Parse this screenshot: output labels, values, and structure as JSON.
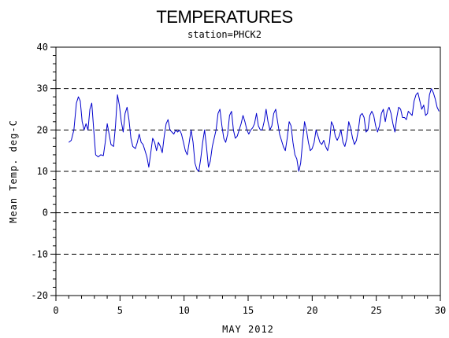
{
  "chart_data": {
    "type": "line",
    "title": "TEMPERATURES",
    "subtitle": "station=PHCK2",
    "xlabel": "MAY 2012",
    "ylabel": "Mean Temp. deg-C",
    "xlim": [
      0,
      30
    ],
    "ylim": [
      -20,
      40
    ],
    "xticks": [
      0,
      5,
      10,
      15,
      20,
      25,
      30
    ],
    "yticks": [
      -20,
      -10,
      0,
      10,
      20,
      30,
      40
    ],
    "grid": "horizontal dashed at major y ticks",
    "series": [
      {
        "color": "#0000cc",
        "points": [
          [
            1.0,
            17.0
          ],
          [
            1.2,
            17.5
          ],
          [
            1.4,
            20.0
          ],
          [
            1.6,
            26.5
          ],
          [
            1.75,
            28.0
          ],
          [
            1.9,
            27.0
          ],
          [
            2.05,
            22.0
          ],
          [
            2.2,
            20.0
          ],
          [
            2.35,
            21.5
          ],
          [
            2.5,
            20.0
          ],
          [
            2.65,
            25.0
          ],
          [
            2.8,
            26.5
          ],
          [
            2.95,
            20.0
          ],
          [
            3.1,
            14.0
          ],
          [
            3.3,
            13.5
          ],
          [
            3.5,
            14.0
          ],
          [
            3.7,
            13.8
          ],
          [
            3.85,
            17.0
          ],
          [
            4.0,
            21.5
          ],
          [
            4.15,
            19.0
          ],
          [
            4.3,
            16.5
          ],
          [
            4.5,
            16.0
          ],
          [
            4.65,
            21.0
          ],
          [
            4.8,
            28.5
          ],
          [
            4.95,
            26.0
          ],
          [
            5.1,
            22.0
          ],
          [
            5.25,
            19.5
          ],
          [
            5.4,
            24.0
          ],
          [
            5.55,
            25.5
          ],
          [
            5.7,
            22.5
          ],
          [
            5.85,
            18.0
          ],
          [
            6.0,
            16.0
          ],
          [
            6.2,
            15.5
          ],
          [
            6.35,
            17.0
          ],
          [
            6.5,
            19.0
          ],
          [
            6.65,
            17.0
          ],
          [
            6.8,
            16.5
          ],
          [
            6.95,
            15.0
          ],
          [
            7.1,
            13.5
          ],
          [
            7.25,
            11.0
          ],
          [
            7.4,
            14.5
          ],
          [
            7.55,
            18.0
          ],
          [
            7.7,
            17.0
          ],
          [
            7.85,
            15.0
          ],
          [
            8.0,
            17.0
          ],
          [
            8.15,
            16.0
          ],
          [
            8.3,
            14.5
          ],
          [
            8.45,
            18.5
          ],
          [
            8.6,
            21.5
          ],
          [
            8.75,
            22.5
          ],
          [
            8.9,
            20.0
          ],
          [
            9.05,
            19.5
          ],
          [
            9.2,
            19.0
          ],
          [
            9.35,
            20.0
          ],
          [
            9.5,
            19.5
          ],
          [
            9.65,
            20.0
          ],
          [
            9.8,
            19.0
          ],
          [
            9.95,
            17.0
          ],
          [
            10.1,
            15.0
          ],
          [
            10.25,
            14.0
          ],
          [
            10.4,
            17.0
          ],
          [
            10.55,
            20.0
          ],
          [
            10.7,
            17.0
          ],
          [
            10.85,
            12.0
          ],
          [
            11.0,
            10.5
          ],
          [
            11.15,
            10.0
          ],
          [
            11.3,
            13.0
          ],
          [
            11.45,
            17.0
          ],
          [
            11.6,
            20.0
          ],
          [
            11.75,
            16.0
          ],
          [
            11.9,
            11.0
          ],
          [
            12.05,
            12.5
          ],
          [
            12.2,
            16.0
          ],
          [
            12.35,
            18.0
          ],
          [
            12.5,
            20.0
          ],
          [
            12.65,
            24.0
          ],
          [
            12.8,
            25.0
          ],
          [
            12.95,
            21.0
          ],
          [
            13.1,
            18.0
          ],
          [
            13.25,
            17.0
          ],
          [
            13.4,
            19.0
          ],
          [
            13.55,
            23.5
          ],
          [
            13.7,
            24.5
          ],
          [
            13.85,
            20.0
          ],
          [
            14.0,
            18.0
          ],
          [
            14.15,
            18.5
          ],
          [
            14.3,
            20.0
          ],
          [
            14.45,
            21.5
          ],
          [
            14.6,
            23.5
          ],
          [
            14.75,
            22.0
          ],
          [
            14.9,
            20.0
          ],
          [
            15.05,
            19.0
          ],
          [
            15.2,
            20.0
          ],
          [
            15.35,
            20.5
          ],
          [
            15.5,
            21.5
          ],
          [
            15.65,
            24.0
          ],
          [
            15.8,
            21.0
          ],
          [
            15.95,
            20.0
          ],
          [
            16.1,
            20.0
          ],
          [
            16.25,
            22.0
          ],
          [
            16.4,
            25.0
          ],
          [
            16.55,
            22.0
          ],
          [
            16.7,
            20.0
          ],
          [
            16.85,
            21.0
          ],
          [
            17.0,
            24.0
          ],
          [
            17.15,
            25.0
          ],
          [
            17.3,
            22.0
          ],
          [
            17.45,
            19.0
          ],
          [
            17.6,
            17.5
          ],
          [
            17.75,
            16.0
          ],
          [
            17.9,
            15.0
          ],
          [
            18.05,
            18.0
          ],
          [
            18.2,
            22.0
          ],
          [
            18.35,
            21.0
          ],
          [
            18.5,
            17.0
          ],
          [
            18.65,
            14.0
          ],
          [
            18.8,
            13.0
          ],
          [
            18.95,
            10.0
          ],
          [
            19.1,
            12.0
          ],
          [
            19.25,
            17.0
          ],
          [
            19.4,
            22.0
          ],
          [
            19.55,
            20.0
          ],
          [
            19.7,
            17.0
          ],
          [
            19.85,
            15.0
          ],
          [
            20.0,
            15.5
          ],
          [
            20.15,
            17.0
          ],
          [
            20.3,
            20.0
          ],
          [
            20.45,
            18.5
          ],
          [
            20.6,
            17.0
          ],
          [
            20.75,
            16.5
          ],
          [
            20.9,
            17.5
          ],
          [
            21.05,
            16.0
          ],
          [
            21.2,
            15.0
          ],
          [
            21.35,
            17.0
          ],
          [
            21.5,
            22.0
          ],
          [
            21.65,
            21.0
          ],
          [
            21.8,
            18.5
          ],
          [
            21.95,
            17.5
          ],
          [
            22.1,
            18.5
          ],
          [
            22.25,
            20.0
          ],
          [
            22.4,
            17.0
          ],
          [
            22.55,
            16.0
          ],
          [
            22.7,
            18.0
          ],
          [
            22.85,
            22.0
          ],
          [
            23.0,
            20.5
          ],
          [
            23.15,
            18.0
          ],
          [
            23.3,
            16.5
          ],
          [
            23.45,
            17.5
          ],
          [
            23.6,
            20.0
          ],
          [
            23.75,
            23.5
          ],
          [
            23.9,
            24.0
          ],
          [
            24.05,
            23.0
          ],
          [
            24.2,
            19.5
          ],
          [
            24.35,
            20.0
          ],
          [
            24.5,
            23.5
          ],
          [
            24.65,
            24.5
          ],
          [
            24.8,
            23.5
          ],
          [
            24.95,
            21.0
          ],
          [
            25.1,
            19.5
          ],
          [
            25.25,
            21.0
          ],
          [
            25.4,
            24.0
          ],
          [
            25.55,
            25.0
          ],
          [
            25.7,
            22.0
          ],
          [
            25.85,
            24.5
          ],
          [
            26.0,
            25.5
          ],
          [
            26.15,
            24.0
          ],
          [
            26.3,
            21.5
          ],
          [
            26.45,
            19.5
          ],
          [
            26.6,
            23.0
          ],
          [
            26.75,
            25.5
          ],
          [
            26.9,
            25.0
          ],
          [
            27.05,
            23.0
          ],
          [
            27.2,
            23.0
          ],
          [
            27.35,
            22.5
          ],
          [
            27.5,
            24.5
          ],
          [
            27.65,
            24.0
          ],
          [
            27.8,
            23.5
          ],
          [
            27.95,
            27.0
          ],
          [
            28.1,
            28.5
          ],
          [
            28.25,
            29.0
          ],
          [
            28.4,
            27.0
          ],
          [
            28.55,
            25.0
          ],
          [
            28.7,
            26.0
          ],
          [
            28.85,
            23.5
          ],
          [
            29.0,
            24.0
          ],
          [
            29.15,
            28.5
          ],
          [
            29.3,
            30.0
          ],
          [
            29.45,
            29.0
          ],
          [
            29.6,
            27.5
          ],
          [
            29.75,
            25.5
          ],
          [
            29.9,
            24.5
          ]
        ]
      }
    ]
  }
}
